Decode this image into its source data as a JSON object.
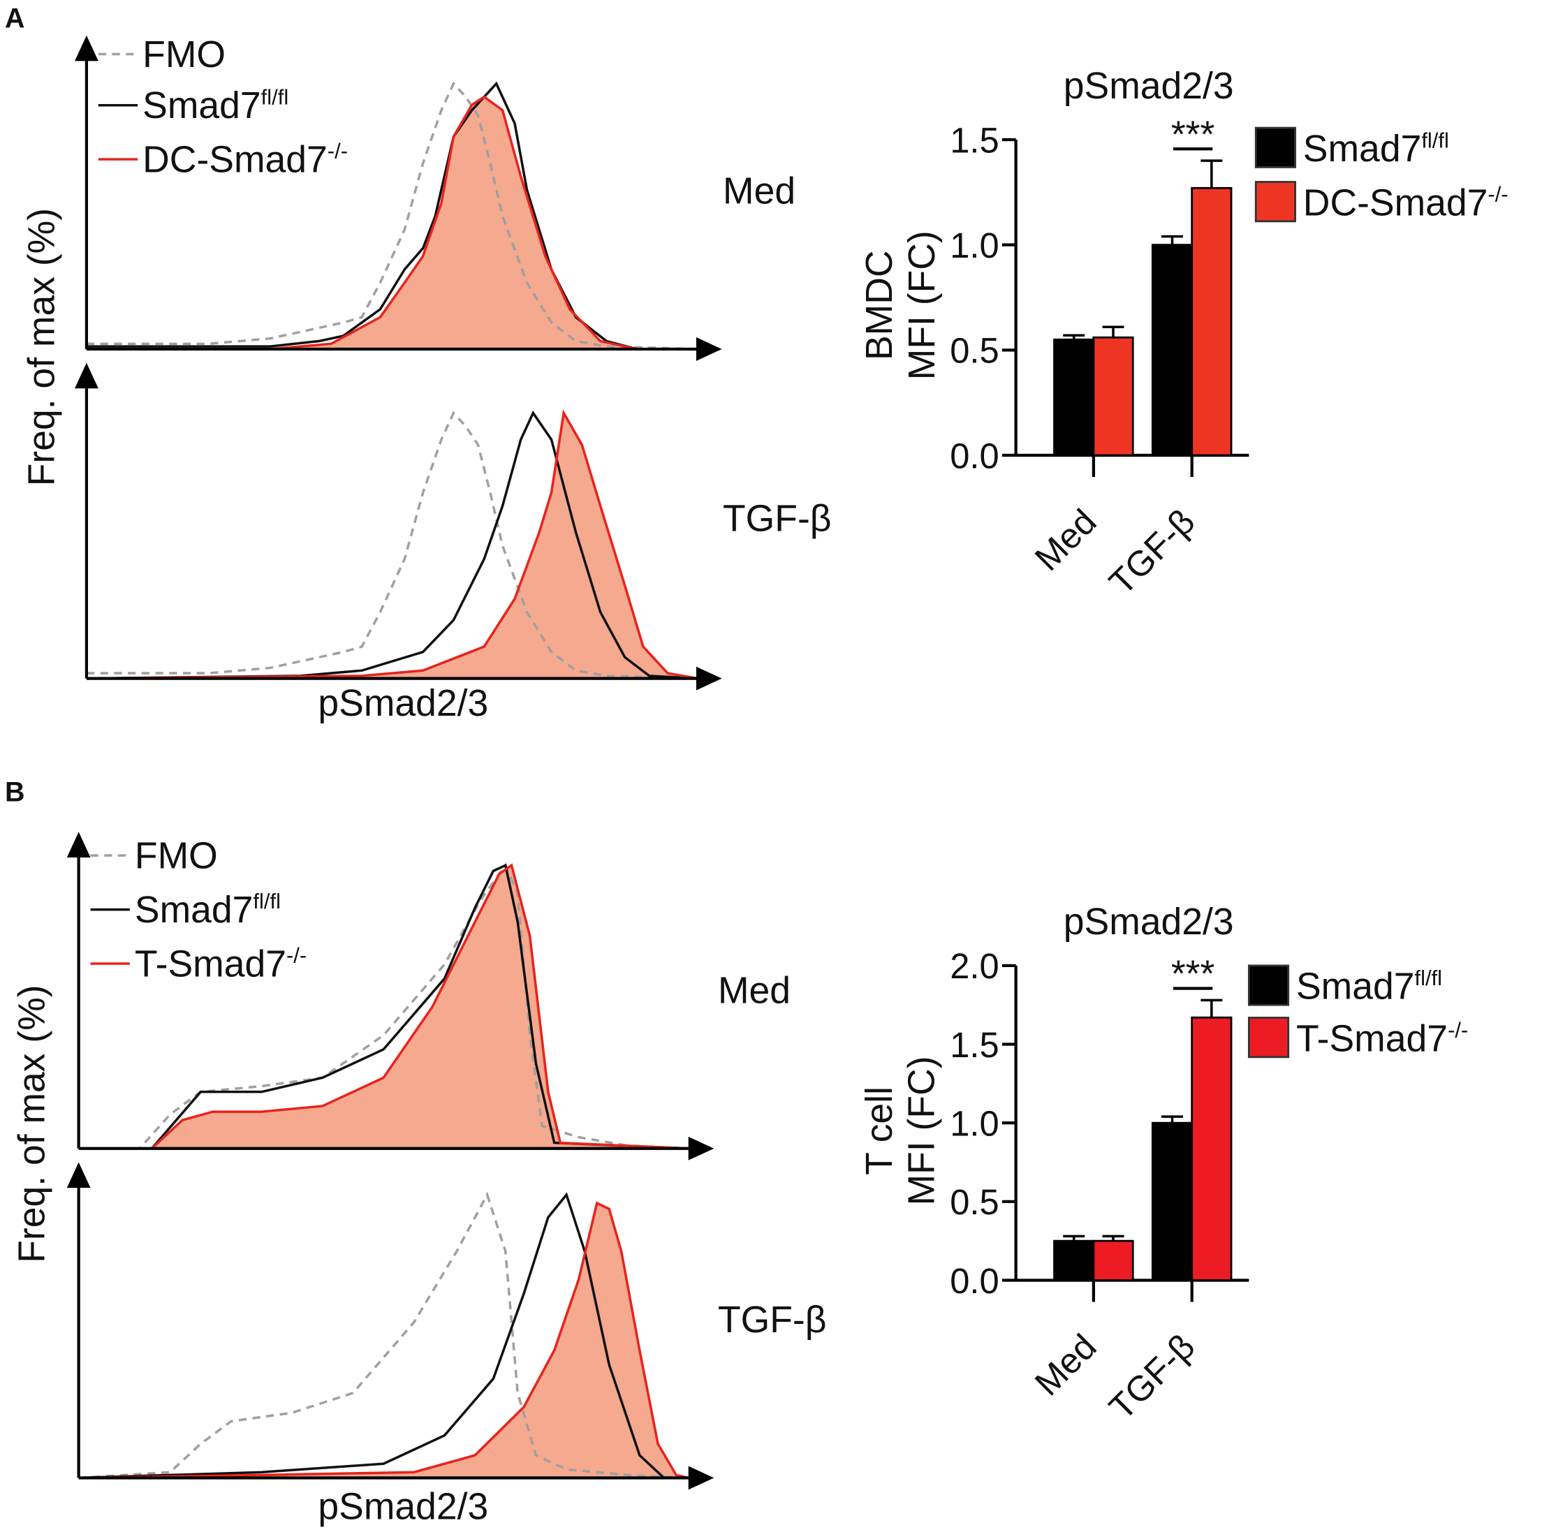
{
  "panels": [
    {
      "letter": "A",
      "histogram": {
        "ylabel": "Freq. of max (%)",
        "xlabel": "pSmad2/3",
        "legend": [
          {
            "name": "FMO",
            "sup": "",
            "style": "dashed",
            "color": "#a0a0a0"
          },
          {
            "name": "Smad7",
            "sup": "fl/fl",
            "style": "solid",
            "color": "#111111"
          },
          {
            "name": "DC-Smad7",
            "sup": "-/-",
            "style": "solid-filled",
            "color": "#e8231d",
            "fill": "#f5a98f"
          }
        ],
        "conditions": [
          {
            "label": "Med",
            "fmo": [
              [
                0,
                2
              ],
              [
                20,
                2
              ],
              [
                30,
                4
              ],
              [
                38,
                8
              ],
              [
                42,
                10
              ],
              [
                45,
                12
              ],
              [
                48,
                25
              ],
              [
                52,
                45
              ],
              [
                55,
                70
              ],
              [
                58,
                90
              ],
              [
                60,
                100
              ],
              [
                62,
                95
              ],
              [
                64,
                88
              ],
              [
                66,
                70
              ],
              [
                68,
                50
              ],
              [
                72,
                25
              ],
              [
                76,
                10
              ],
              [
                80,
                3
              ],
              [
                85,
                1
              ],
              [
                100,
                0
              ]
            ],
            "control": [
              [
                0,
                1
              ],
              [
                30,
                1
              ],
              [
                38,
                3
              ],
              [
                42,
                5
              ],
              [
                48,
                15
              ],
              [
                52,
                30
              ],
              [
                55,
                38
              ],
              [
                57,
                50
              ],
              [
                60,
                80
              ],
              [
                63,
                90
              ],
              [
                67,
                100
              ],
              [
                70,
                85
              ],
              [
                72,
                60
              ],
              [
                76,
                30
              ],
              [
                80,
                12
              ],
              [
                85,
                3
              ],
              [
                90,
                0
              ],
              [
                100,
                0
              ]
            ],
            "knockout": [
              [
                0,
                0
              ],
              [
                30,
                0
              ],
              [
                40,
                2
              ],
              [
                48,
                12
              ],
              [
                52,
                25
              ],
              [
                55,
                35
              ],
              [
                58,
                55
              ],
              [
                60,
                80
              ],
              [
                63,
                92
              ],
              [
                65,
                95
              ],
              [
                68,
                90
              ],
              [
                71,
                65
              ],
              [
                75,
                35
              ],
              [
                79,
                15
              ],
              [
                84,
                3
              ],
              [
                90,
                0
              ],
              [
                100,
                0
              ]
            ]
          },
          {
            "label": "TGF-β",
            "fmo": [
              [
                0,
                2
              ],
              [
                20,
                2
              ],
              [
                30,
                4
              ],
              [
                38,
                8
              ],
              [
                42,
                10
              ],
              [
                45,
                12
              ],
              [
                48,
                25
              ],
              [
                52,
                45
              ],
              [
                55,
                70
              ],
              [
                58,
                90
              ],
              [
                60,
                100
              ],
              [
                62,
                95
              ],
              [
                64,
                88
              ],
              [
                66,
                70
              ],
              [
                68,
                50
              ],
              [
                72,
                25
              ],
              [
                76,
                10
              ],
              [
                80,
                3
              ],
              [
                85,
                1
              ],
              [
                100,
                0
              ]
            ],
            "control": [
              [
                0,
                0
              ],
              [
                35,
                1
              ],
              [
                45,
                3
              ],
              [
                55,
                10
              ],
              [
                60,
                22
              ],
              [
                65,
                45
              ],
              [
                68,
                65
              ],
              [
                71,
                90
              ],
              [
                73,
                100
              ],
              [
                76,
                90
              ],
              [
                80,
                55
              ],
              [
                84,
                25
              ],
              [
                88,
                8
              ],
              [
                92,
                1
              ],
              [
                100,
                0
              ]
            ],
            "knockout": [
              [
                0,
                0
              ],
              [
                45,
                1
              ],
              [
                55,
                3
              ],
              [
                65,
                12
              ],
              [
                70,
                30
              ],
              [
                74,
                55
              ],
              [
                76,
                70
              ],
              [
                78,
                100
              ],
              [
                81,
                88
              ],
              [
                84,
                65
              ],
              [
                88,
                35
              ],
              [
                91,
                12
              ],
              [
                95,
                2
              ],
              [
                100,
                0
              ]
            ]
          }
        ]
      },
      "bar": {
        "type": "bar",
        "title": "pSmad2/3",
        "ylabel_line1": "BMDC",
        "ylabel_line2": "MFI (FC)",
        "categories": [
          "Med",
          "TGF-β"
        ],
        "ylim": [
          0,
          1.5
        ],
        "yticks": [
          "0.0",
          "0.5",
          "1.0",
          "1.5"
        ],
        "significance": "***",
        "series": [
          {
            "name": "Smad7",
            "sup": "fl/fl",
            "color": "#000000",
            "values": [
              0.55,
              1.0
            ],
            "errors": [
              0.02,
              0.04
            ]
          },
          {
            "name": "DC-Smad7",
            "sup": "-/-",
            "color": "#ee3524",
            "values": [
              0.56,
              1.27
            ],
            "errors": [
              0.05,
              0.13
            ]
          }
        ]
      }
    },
    {
      "letter": "B",
      "histogram": {
        "ylabel": "Freq. of max (%)",
        "xlabel": "pSmad2/3",
        "legend": [
          {
            "name": "FMO",
            "sup": "",
            "style": "dashed",
            "color": "#a0a0a0"
          },
          {
            "name": "Smad7",
            "sup": "fl/fl",
            "style": "solid",
            "color": "#111111"
          },
          {
            "name": "T-Smad7",
            "sup": "-/-",
            "style": "solid-filled",
            "color": "#e8231d",
            "fill": "#f5a98f"
          }
        ],
        "conditions": [
          {
            "label": "Med",
            "fmo": [
              [
                0,
                0
              ],
              [
                10,
                0
              ],
              [
                15,
                12
              ],
              [
                20,
                20
              ],
              [
                30,
                22
              ],
              [
                40,
                25
              ],
              [
                50,
                40
              ],
              [
                60,
                65
              ],
              [
                66,
                88
              ],
              [
                70,
                100
              ],
              [
                72,
                90
              ],
              [
                74,
                40
              ],
              [
                76,
                8
              ],
              [
                82,
                4
              ],
              [
                90,
                1
              ],
              [
                100,
                0
              ]
            ],
            "control": [
              [
                0,
                0
              ],
              [
                12,
                0
              ],
              [
                16,
                10
              ],
              [
                20,
                20
              ],
              [
                30,
                20
              ],
              [
                40,
                25
              ],
              [
                50,
                35
              ],
              [
                60,
                60
              ],
              [
                65,
                85
              ],
              [
                68,
                98
              ],
              [
                70,
                100
              ],
              [
                72,
                80
              ],
              [
                75,
                30
              ],
              [
                78,
                2
              ],
              [
                100,
                0
              ]
            ],
            "knockout": [
              [
                0,
                0
              ],
              [
                12,
                0
              ],
              [
                17,
                10
              ],
              [
                22,
                13
              ],
              [
                30,
                13
              ],
              [
                40,
                15
              ],
              [
                50,
                25
              ],
              [
                58,
                50
              ],
              [
                65,
                80
              ],
              [
                69,
                97
              ],
              [
                71,
                100
              ],
              [
                74,
                75
              ],
              [
                77,
                20
              ],
              [
                79,
                2
              ],
              [
                100,
                0
              ]
            ]
          },
          {
            "label": "TGF-β",
            "fmo": [
              [
                0,
                0
              ],
              [
                15,
                2
              ],
              [
                20,
                12
              ],
              [
                25,
                20
              ],
              [
                35,
                23
              ],
              [
                45,
                30
              ],
              [
                55,
                55
              ],
              [
                62,
                80
              ],
              [
                67,
                100
              ],
              [
                70,
                80
              ],
              [
                72,
                30
              ],
              [
                75,
                8
              ],
              [
                80,
                3
              ],
              [
                90,
                1
              ],
              [
                100,
                0
              ]
            ],
            "control": [
              [
                0,
                0
              ],
              [
                30,
                2
              ],
              [
                50,
                5
              ],
              [
                60,
                15
              ],
              [
                68,
                35
              ],
              [
                73,
                65
              ],
              [
                77,
                92
              ],
              [
                80,
                100
              ],
              [
                83,
                80
              ],
              [
                87,
                40
              ],
              [
                92,
                8
              ],
              [
                96,
                0
              ],
              [
                100,
                0
              ]
            ],
            "knockout": [
              [
                0,
                0
              ],
              [
                30,
                1
              ],
              [
                55,
                2
              ],
              [
                65,
                8
              ],
              [
                73,
                25
              ],
              [
                78,
                45
              ],
              [
                82,
                70
              ],
              [
                85,
                97
              ],
              [
                87,
                95
              ],
              [
                89,
                80
              ],
              [
                92,
                45
              ],
              [
                95,
                12
              ],
              [
                98,
                1
              ],
              [
                100,
                0
              ]
            ]
          }
        ]
      },
      "bar": {
        "type": "bar",
        "title": "pSmad2/3",
        "ylabel_line1": "T cell",
        "ylabel_line2": "MFI (FC)",
        "categories": [
          "Med",
          "TGF-β"
        ],
        "ylim": [
          0,
          2.0
        ],
        "yticks": [
          "0.0",
          "0.5",
          "1.0",
          "1.5",
          "2.0"
        ],
        "significance": "***",
        "series": [
          {
            "name": "Smad7",
            "sup": "fl/fl",
            "color": "#000000",
            "values": [
              0.25,
              1.0
            ],
            "errors": [
              0.03,
              0.04
            ]
          },
          {
            "name": "T-Smad7",
            "sup": "-/-",
            "color": "#ed1c24",
            "values": [
              0.25,
              1.67
            ],
            "errors": [
              0.03,
              0.11
            ]
          }
        ]
      }
    }
  ],
  "chart_data": [
    {
      "type": "bar",
      "title": "pSmad2/3",
      "ylabel": "BMDC MFI (FC)",
      "categories": [
        "Med",
        "TGF-β"
      ],
      "ylim": [
        0,
        1.5
      ],
      "series": [
        {
          "name": "Smad7fl/fl",
          "values": [
            0.55,
            1.0
          ]
        },
        {
          "name": "DC-Smad7-/-",
          "values": [
            0.56,
            1.27
          ]
        }
      ],
      "legend": "right"
    },
    {
      "type": "bar",
      "title": "pSmad2/3",
      "ylabel": "T cell MFI (FC)",
      "categories": [
        "Med",
        "TGF-β"
      ],
      "ylim": [
        0,
        2.0
      ],
      "series": [
        {
          "name": "Smad7fl/fl",
          "values": [
            0.25,
            1.0
          ]
        },
        {
          "name": "T-Smad7-/-",
          "values": [
            0.25,
            1.67
          ]
        }
      ],
      "legend": "right"
    }
  ]
}
